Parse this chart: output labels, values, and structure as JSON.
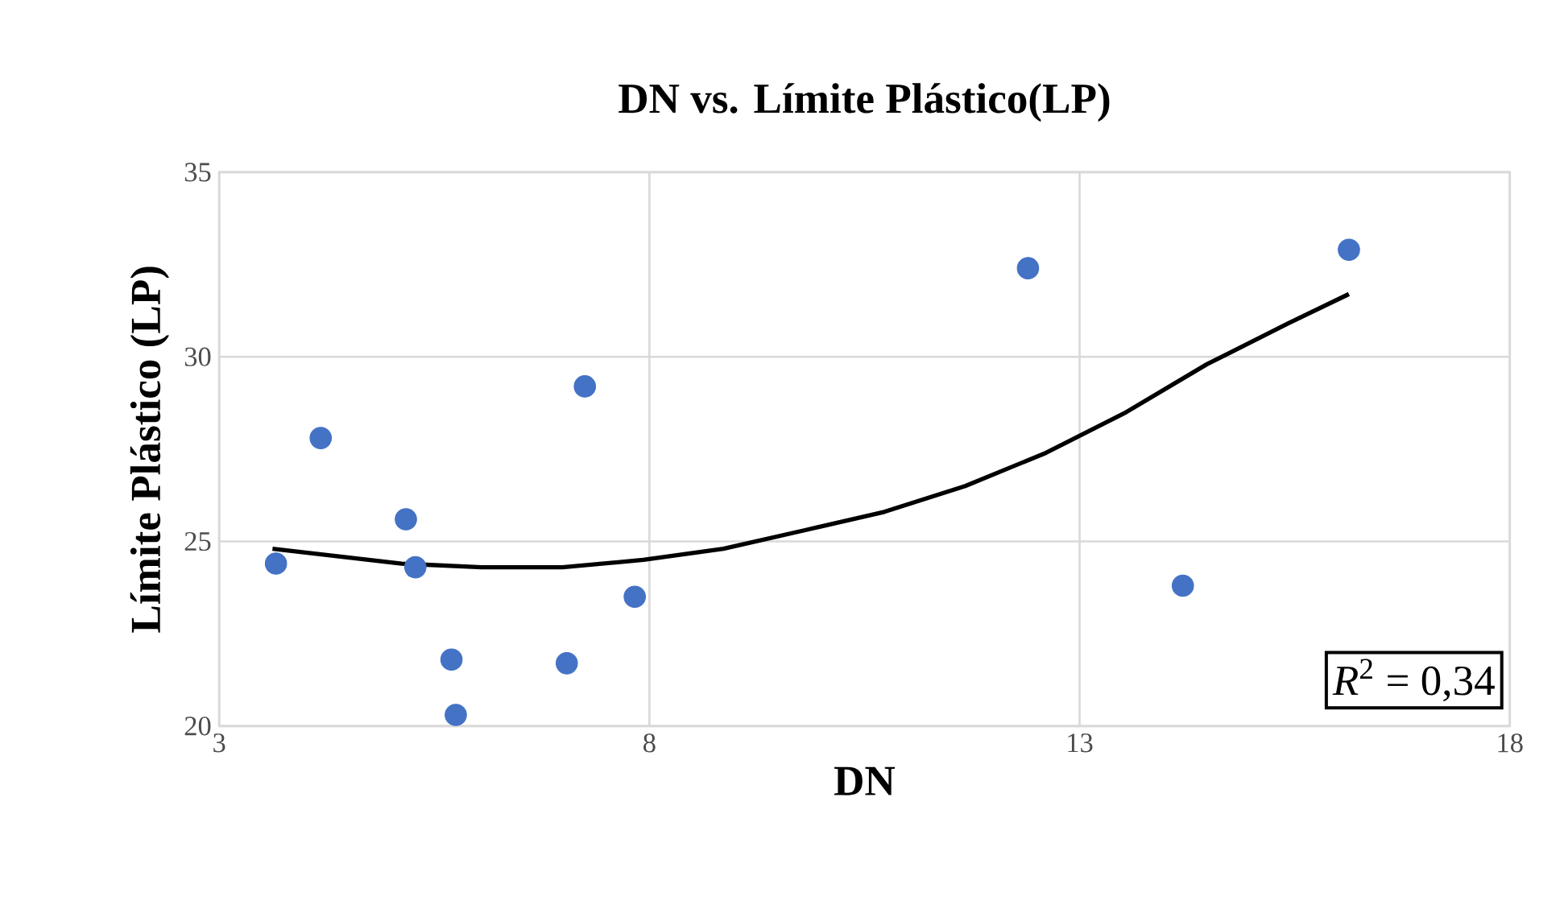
{
  "chart_data": {
    "type": "scatter",
    "title": "DN vs. Límite Plástico(LP)",
    "xlabel": "DN",
    "ylabel": "Límite Plástico (LP)",
    "xlim": [
      3,
      18
    ],
    "xticks": [
      3,
      8,
      13,
      18
    ],
    "ylim": [
      20,
      35
    ],
    "yticks": [
      20,
      25,
      30,
      35
    ],
    "grid": true,
    "marker": "circle",
    "series": [
      {
        "color": "#4472c4",
        "x": [
          3.66,
          4.18,
          5.17,
          5.28,
          5.7,
          5.75,
          7.25,
          7.04,
          7.83,
          12.4,
          14.2,
          16.13
        ],
        "values": [
          24.4,
          27.8,
          25.6,
          24.3,
          21.8,
          20.3,
          29.2,
          21.7,
          23.5,
          32.4,
          23.8,
          32.9
        ]
      },
      {
        "type": "line",
        "color": "#000000",
        "marker": "none",
        "x": [
          3.62,
          5.12,
          6.05,
          6.99,
          7.93,
          8.86,
          9.8,
          10.73,
          11.67,
          12.61,
          13.54,
          14.48,
          15.42,
          16.13
        ],
        "values": [
          24.8,
          24.4,
          24.3,
          24.3,
          24.5,
          24.8,
          25.3,
          25.8,
          26.5,
          27.4,
          28.5,
          29.8,
          30.9,
          31.7
        ]
      }
    ],
    "annotations": [
      "*R*$^{2}$ = 0,34"
    ]
  }
}
